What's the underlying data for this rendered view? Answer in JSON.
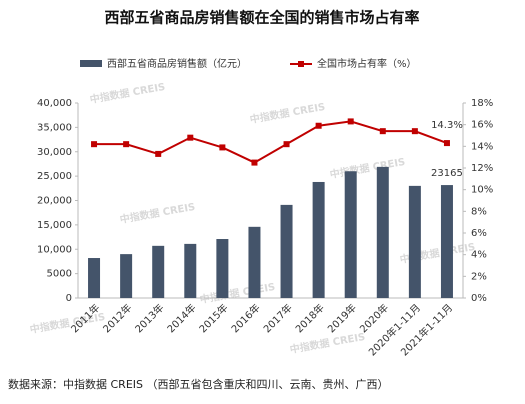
{
  "chart_data": {
    "type": "bar-line",
    "title": "西部五省商品房销售额在全国的销售市场占有率",
    "categories": [
      "2011年",
      "2012年",
      "2013年",
      "2014年",
      "2015年",
      "2016年",
      "2017年",
      "2018年",
      "2019年",
      "2020年",
      "2020年1-11月",
      "2021年1-11月"
    ],
    "series": [
      {
        "name": "西部五省商品房销售额（亿元）",
        "type": "bar",
        "color": "#44546a",
        "axis": "y",
        "values": [
          8200,
          9000,
          10700,
          11100,
          12100,
          14600,
          19100,
          23800,
          26000,
          26900,
          23000,
          23165
        ],
        "value_labels": [
          null,
          null,
          null,
          null,
          null,
          null,
          null,
          null,
          null,
          null,
          null,
          "23165"
        ]
      },
      {
        "name": "全国市场占有率（%）",
        "type": "line",
        "color": "#c00000",
        "axis": "y2",
        "values": [
          14.2,
          14.2,
          13.3,
          14.8,
          13.9,
          12.5,
          14.2,
          15.9,
          16.3,
          15.4,
          15.4,
          14.3
        ],
        "value_labels": [
          null,
          null,
          null,
          null,
          null,
          null,
          null,
          null,
          null,
          null,
          null,
          "14.3%"
        ]
      }
    ],
    "ylim": [
      0,
      40000
    ],
    "yticks": [
      0,
      5000,
      {
        "value": 10000,
        "label": "10,000"
      },
      {
        "value": 15000,
        "label": "15,000"
      },
      {
        "value": 20000,
        "label": "20,000"
      },
      {
        "value": 25000,
        "label": "25,000"
      },
      {
        "value": 30000,
        "label": "30,000"
      },
      {
        "value": 35000,
        "label": "35,000"
      },
      {
        "value": 40000,
        "label": "40,000"
      }
    ],
    "y2lim": [
      0,
      18
    ],
    "y2ticks": [
      {
        "value": 0,
        "label": "0%"
      },
      {
        "value": 2,
        "label": "2%"
      },
      {
        "value": 4,
        "label": "4%"
      },
      {
        "value": 6,
        "label": "6%"
      },
      {
        "value": 8,
        "label": "8%"
      },
      {
        "value": 10,
        "label": "10%"
      },
      {
        "value": 12,
        "label": "12%"
      },
      {
        "value": 14,
        "label": "14%"
      },
      {
        "value": 16,
        "label": "16%"
      },
      {
        "value": 18,
        "label": "18%"
      }
    ],
    "grid": false,
    "legend": "top",
    "watermark": "中指数据 CREIS",
    "source": "数据来源：中指数据 CREIS （西部五省包含重庆和四川、云南、贵州、广西）"
  }
}
